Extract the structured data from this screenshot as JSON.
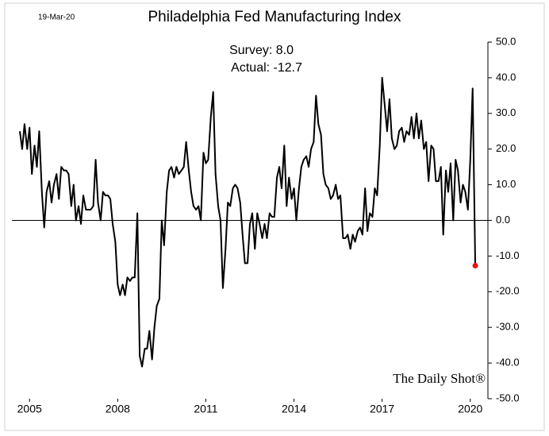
{
  "chart_data": {
    "type": "line",
    "title": "Philadelphia Fed Manufacturing Index",
    "date_note": "19-Mar-20",
    "annotations": [
      "Survey: 8.0",
      "Actual:  -12.7"
    ],
    "source": "The Daily Shot®",
    "x": [
      2004.67,
      2004.75,
      2004.83,
      2004.92,
      2005,
      2005.08,
      2005.17,
      2005.25,
      2005.33,
      2005.42,
      2005.5,
      2005.58,
      2005.67,
      2005.75,
      2005.83,
      2005.92,
      2006,
      2006.08,
      2006.17,
      2006.25,
      2006.33,
      2006.42,
      2006.5,
      2006.58,
      2006.67,
      2006.75,
      2006.83,
      2006.92,
      2007,
      2007.08,
      2007.17,
      2007.25,
      2007.33,
      2007.42,
      2007.5,
      2007.58,
      2007.67,
      2007.75,
      2007.83,
      2007.92,
      2008,
      2008.08,
      2008.17,
      2008.25,
      2008.33,
      2008.42,
      2008.5,
      2008.58,
      2008.67,
      2008.75,
      2008.83,
      2008.92,
      2009,
      2009.08,
      2009.17,
      2009.25,
      2009.33,
      2009.42,
      2009.5,
      2009.58,
      2009.67,
      2009.75,
      2009.83,
      2009.92,
      2010,
      2010.08,
      2010.17,
      2010.25,
      2010.33,
      2010.42,
      2010.5,
      2010.58,
      2010.67,
      2010.75,
      2010.83,
      2010.92,
      2011,
      2011.08,
      2011.17,
      2011.25,
      2011.33,
      2011.42,
      2011.5,
      2011.58,
      2011.67,
      2011.75,
      2011.83,
      2011.92,
      2012,
      2012.08,
      2012.17,
      2012.25,
      2012.33,
      2012.42,
      2012.5,
      2012.58,
      2012.67,
      2012.75,
      2012.83,
      2012.92,
      2013,
      2013.08,
      2013.17,
      2013.25,
      2013.33,
      2013.42,
      2013.5,
      2013.58,
      2013.67,
      2013.75,
      2013.83,
      2013.92,
      2014,
      2014.08,
      2014.17,
      2014.25,
      2014.33,
      2014.42,
      2014.5,
      2014.58,
      2014.67,
      2014.75,
      2014.83,
      2014.92,
      2015,
      2015.08,
      2015.17,
      2015.25,
      2015.33,
      2015.42,
      2015.5,
      2015.58,
      2015.67,
      2015.75,
      2015.83,
      2015.92,
      2016,
      2016.08,
      2016.17,
      2016.25,
      2016.33,
      2016.42,
      2016.5,
      2016.58,
      2016.67,
      2016.75,
      2016.83,
      2016.92,
      2017,
      2017.08,
      2017.17,
      2017.25,
      2017.33,
      2017.42,
      2017.5,
      2017.58,
      2017.67,
      2017.75,
      2017.83,
      2017.92,
      2018,
      2018.08,
      2018.17,
      2018.25,
      2018.33,
      2018.42,
      2018.5,
      2018.58,
      2018.67,
      2018.75,
      2018.83,
      2018.92,
      2019,
      2019.08,
      2019.17,
      2019.25,
      2019.33,
      2019.42,
      2019.5,
      2019.58,
      2019.67,
      2019.75,
      2019.83,
      2019.92,
      2020,
      2020.08,
      2020.17
    ],
    "series": [
      {
        "name": "Philadelphia Fed Manufacturing Index",
        "color": "#000000",
        "highlight_color": "#ee1111",
        "values": [
          25,
          20,
          27,
          20,
          26,
          13,
          21,
          15,
          25,
          8,
          -2,
          8,
          11,
          5,
          10,
          13,
          6,
          15,
          14,
          14,
          13,
          4,
          10,
          0,
          4,
          -1,
          7,
          3,
          3,
          3,
          4,
          17,
          5,
          0,
          8,
          7,
          7,
          6,
          -1,
          -6,
          -18,
          -21,
          -18,
          -21,
          -16,
          -17,
          -16,
          -16,
          2,
          -38,
          -41,
          -36,
          -36,
          -31,
          -39,
          -30,
          -24,
          -22,
          0,
          -7,
          8,
          14,
          15,
          12,
          15,
          13,
          14,
          15,
          22,
          14,
          8,
          4,
          3,
          4,
          0,
          19,
          16,
          17,
          29,
          36,
          13,
          4,
          0,
          -19,
          -8,
          5,
          4,
          9,
          10,
          9,
          5,
          -4,
          -12,
          -12,
          -1,
          2,
          -8,
          2,
          -1,
          -5,
          -1,
          -5,
          2,
          1,
          1,
          12,
          15,
          9,
          21,
          4,
          12,
          6,
          9,
          0,
          9,
          15,
          17,
          18,
          15,
          20,
          22,
          35,
          27,
          24,
          13,
          10,
          9,
          6,
          7,
          10,
          6,
          7,
          -5,
          -5,
          -4,
          -8,
          -4,
          -6,
          -3,
          -2,
          -4,
          9,
          -3,
          2,
          1,
          9,
          7,
          21,
          40,
          33,
          25,
          34,
          23,
          20,
          21,
          25,
          26,
          22,
          25,
          24,
          29,
          23,
          30,
          23,
          28,
          20,
          22,
          11,
          21,
          20,
          11,
          11,
          15,
          -4,
          14,
          8,
          16,
          0,
          17,
          14,
          5,
          10,
          8,
          3,
          17,
          37,
          -12.7
        ]
      }
    ],
    "xlim": [
      2004.4,
      2020.6
    ],
    "xticks": [
      2005,
      2008,
      2011,
      2014,
      2017,
      2020
    ],
    "ylim": [
      -50,
      50
    ],
    "yticks": [
      {
        "value": 50,
        "label": "50.0"
      },
      {
        "value": 40,
        "label": "40.0"
      },
      {
        "value": 30,
        "label": "30.0"
      },
      {
        "value": 20,
        "label": "20.0"
      },
      {
        "value": 10,
        "label": "10.0"
      },
      {
        "value": 0,
        "label": "0.0"
      },
      {
        "value": -10,
        "label": "-10.0"
      },
      {
        "value": -20,
        "label": "-20.0"
      },
      {
        "value": -30,
        "label": "-30.0"
      },
      {
        "value": -40,
        "label": "-40.0"
      },
      {
        "value": -50,
        "label": "-50.0"
      }
    ],
    "zero_line": true
  }
}
